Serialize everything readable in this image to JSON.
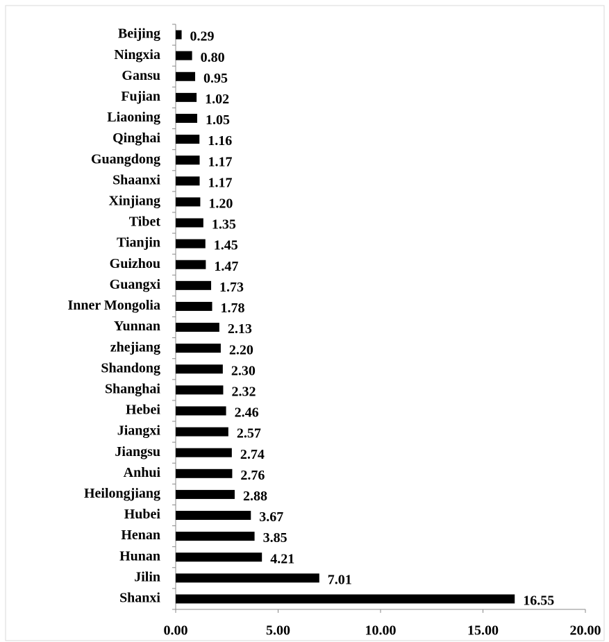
{
  "chart_data": {
    "type": "bar",
    "orientation": "horizontal",
    "color": "#000000",
    "categories": [
      "Beijing",
      "Ningxia",
      "Gansu",
      "Fujian",
      "Liaoning",
      "Qinghai",
      "Guangdong",
      "Shaanxi",
      "Xinjiang",
      "Tibet",
      "Tianjin",
      "Guizhou",
      "Guangxi",
      "Inner Mongolia",
      "Yunnan",
      "zhejiang",
      "Shandong",
      "Shanghai",
      "Hebei",
      "Jiangxi",
      "Jiangsu",
      "Anhui",
      "Heilongjiang",
      "Hubei",
      "Henan",
      "Hunan",
      "Jilin",
      "Shanxi"
    ],
    "values": [
      0.29,
      0.8,
      0.95,
      1.02,
      1.05,
      1.16,
      1.17,
      1.17,
      1.2,
      1.35,
      1.45,
      1.47,
      1.73,
      1.78,
      2.13,
      2.2,
      2.3,
      2.32,
      2.46,
      2.57,
      2.74,
      2.76,
      2.88,
      3.67,
      3.85,
      4.21,
      7.01,
      16.55
    ],
    "value_labels": [
      "0.29",
      "0.80",
      "0.95",
      "1.02",
      "1.05",
      "1.16",
      "1.17",
      "1.17",
      "1.20",
      "1.35",
      "1.45",
      "1.47",
      "1.73",
      "1.78",
      "2.13",
      "2.20",
      "2.30",
      "2.32",
      "2.46",
      "2.57",
      "2.74",
      "2.76",
      "2.88",
      "3.67",
      "3.85",
      "4.21",
      "7.01",
      "16.55"
    ],
    "xlim": [
      0,
      20
    ],
    "xticks": [
      {
        "value": 0,
        "label": "0.00"
      },
      {
        "value": 5,
        "label": "5.00"
      },
      {
        "value": 10,
        "label": "10.00"
      },
      {
        "value": 15,
        "label": "15.00"
      },
      {
        "value": 20,
        "label": "20.00"
      }
    ]
  }
}
